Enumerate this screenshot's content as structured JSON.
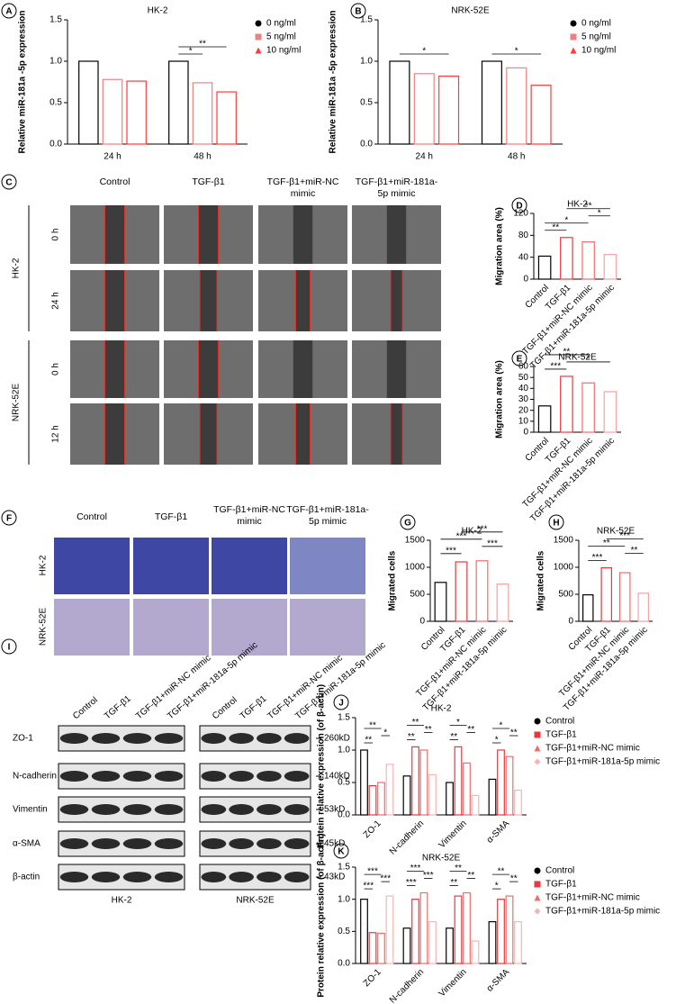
{
  "panels": [
    "A",
    "B",
    "C",
    "D",
    "E",
    "F",
    "G",
    "H",
    "I",
    "J",
    "K"
  ],
  "migration_images": {
    "columns": [
      "Control",
      "TGF-β1",
      "TGF-β1+miR-NC mimic",
      "TGF-β1+miR-181a-5p mimic"
    ],
    "rows": [
      {
        "cell_line": "HK-2",
        "times": [
          "0 h",
          "24 h"
        ]
      },
      {
        "cell_line": "NRK-52E",
        "times": [
          "0 h",
          "12 h"
        ]
      }
    ]
  },
  "transwell_images": {
    "columns": [
      "Control",
      "TGF-β1",
      "TGF-β1+miR-NC mimic",
      "TGF-β1+miR-181a-5p mimic"
    ],
    "rows": [
      "HK-2",
      "NRK-52E"
    ]
  },
  "western_blot": {
    "lanes": [
      "Control",
      "TGF-β1",
      "TGF-β1+miR-NC mimic",
      "TGF-β1+miR-181a-5p mimic"
    ],
    "proteins": [
      {
        "name": "ZO-1",
        "size": "260kD"
      },
      {
        "name": "N-cadherin",
        "size": "140kD"
      },
      {
        "name": "Vimentin",
        "size": "53kD"
      },
      {
        "name": "α-SMA",
        "size": "45kD"
      },
      {
        "name": "β-actin",
        "size": "43kD"
      }
    ],
    "cell_lines": [
      "HK-2",
      "NRK-52E"
    ]
  },
  "chart_data": [
    {
      "type": "bar",
      "title": "HK-2",
      "y_label": "Relative miR-181a -5p expression",
      "categories": [
        "24 h",
        "48 h"
      ],
      "series": [
        {
          "name": "0 ng/ml",
          "color": "#000000",
          "marker": "circle",
          "values": [
            1.0,
            1.0
          ]
        },
        {
          "name": "5 ng/ml",
          "color": "#f08080",
          "marker": "square",
          "values": [
            0.78,
            0.74
          ]
        },
        {
          "name": "10 ng/ml",
          "color": "#ff3b3b",
          "marker": "triangle",
          "values": [
            0.76,
            0.63
          ]
        }
      ],
      "ylim": [
        0,
        1.5
      ],
      "yticks": [
        {
          "value": 0,
          "label": "0.0"
        },
        {
          "value": 0.5,
          "label": "0.5"
        },
        {
          "value": 1,
          "label": "1.0"
        },
        {
          "value": 1.5,
          "label": "1.5"
        }
      ],
      "comparisons": [
        {
          "category": 1,
          "from": 0,
          "to": 1,
          "label": "*"
        },
        {
          "category": 1,
          "from": 0,
          "to": 2,
          "label": "**"
        }
      ]
    },
    {
      "type": "bar",
      "title": "NRK-52E",
      "y_label": "Relative miR-181a -5p expression",
      "categories": [
        "24 h",
        "48 h"
      ],
      "series": [
        {
          "name": "0 ng/ml",
          "color": "#000000",
          "marker": "circle",
          "values": [
            1.0,
            1.0
          ]
        },
        {
          "name": "5 ng/ml",
          "color": "#f08080",
          "marker": "square",
          "values": [
            0.85,
            0.92
          ]
        },
        {
          "name": "10 ng/ml",
          "color": "#ff3b3b",
          "marker": "triangle",
          "values": [
            0.82,
            0.71
          ]
        }
      ],
      "ylim": [
        0,
        1.5
      ],
      "yticks": [
        {
          "value": 0,
          "label": "0.0"
        },
        {
          "value": 0.5,
          "label": "0.5"
        },
        {
          "value": 1,
          "label": "1.0"
        },
        {
          "value": 1.5,
          "label": "1.5"
        }
      ],
      "comparisons": [
        {
          "category": 0,
          "from": 0,
          "to": 2,
          "label": "*"
        },
        {
          "category": 1,
          "from": 0,
          "to": 2,
          "label": "*"
        }
      ]
    },
    {
      "type": "bar",
      "title": "HK-2",
      "y_label": "Migration area (%)",
      "categories": [
        "Control",
        "TGF-β1",
        "TGF-β1+miR-NC mimic",
        "TGF-β1+miR-181a-5p mimic"
      ],
      "values": [
        42,
        76,
        68,
        45
      ],
      "colors": [
        "#000000",
        "#e8383d",
        "#f06b6b",
        "#f4a3a3"
      ],
      "ylim": [
        0,
        120
      ],
      "yticks": [
        0,
        40,
        80,
        120
      ],
      "comparisons": [
        {
          "from": 0,
          "to": 1,
          "label": "**"
        },
        {
          "from": 0,
          "to": 2,
          "label": "*"
        },
        {
          "from": 2,
          "to": 3,
          "label": "*"
        },
        {
          "from": 1,
          "to": 3,
          "label": "**"
        }
      ]
    },
    {
      "type": "bar",
      "title": "NRK-52E",
      "y_label": "Migration area (%)",
      "categories": [
        "Control",
        "TGF-β1",
        "TGF-β1+miR-NC mimic",
        "TGF-β1+miR-181a-5p mimic"
      ],
      "values": [
        24,
        51,
        45,
        37
      ],
      "colors": [
        "#000000",
        "#e8383d",
        "#f06b6b",
        "#f4a3a3"
      ],
      "ylim": [
        0,
        60
      ],
      "yticks": [
        0,
        10,
        20,
        30,
        40,
        50,
        60
      ],
      "comparisons": [
        {
          "from": 0,
          "to": 1,
          "label": "***"
        },
        {
          "from": 1,
          "to": 3,
          "label": "*"
        },
        {
          "from": 0,
          "to": 2,
          "label": "**"
        }
      ]
    },
    {
      "type": "bar",
      "title": "HK-2",
      "y_label": "Migrated cells",
      "categories": [
        "Control",
        "TGF-β1",
        "TGF-β1+miR-NC mimic",
        "TGF-β1+miR-181a-5p mimic"
      ],
      "values": [
        720,
        1100,
        1120,
        690
      ],
      "colors": [
        "#000000",
        "#e8383d",
        "#f06b6b",
        "#f4a3a3"
      ],
      "ylim": [
        0,
        1500
      ],
      "yticks": [
        0,
        500,
        1000,
        1500
      ],
      "comparisons": [
        {
          "from": 0,
          "to": 1,
          "label": "***"
        },
        {
          "from": 2,
          "to": 3,
          "label": "***"
        },
        {
          "from": 0,
          "to": 2,
          "label": "***"
        },
        {
          "from": 1,
          "to": 3,
          "label": "***"
        }
      ]
    },
    {
      "type": "bar",
      "title": "NRK-52E",
      "y_label": "Migrated cells",
      "categories": [
        "Control",
        "TGF-β1",
        "TGF-β1+miR-NC mimic",
        "TGF-β1+miR-181a-5p mimic"
      ],
      "values": [
        490,
        990,
        900,
        520
      ],
      "colors": [
        "#000000",
        "#e8383d",
        "#f06b6b",
        "#f4a3a3"
      ],
      "ylim": [
        0,
        1500
      ],
      "yticks": [
        0,
        500,
        1000,
        1500
      ],
      "comparisons": [
        {
          "from": 0,
          "to": 1,
          "label": "***"
        },
        {
          "from": 2,
          "to": 3,
          "label": "**"
        },
        {
          "from": 0,
          "to": 2,
          "label": "**"
        },
        {
          "from": 1,
          "to": 3,
          "label": "***"
        }
      ]
    },
    {
      "type": "bar",
      "title": "HK-2",
      "y_label": "Protein relative expression (of β-actin)",
      "categories": [
        "ZO-1",
        "N-cadherin",
        "Vimentin",
        "α-SMA"
      ],
      "series": [
        {
          "name": "Control",
          "color": "#000000",
          "marker": "circle",
          "values": [
            1.0,
            0.6,
            0.5,
            0.55
          ]
        },
        {
          "name": "TGF-β1",
          "color": "#e8383d",
          "marker": "square",
          "values": [
            0.45,
            1.05,
            1.05,
            1.0
          ]
        },
        {
          "name": "TGF-β1+miR-NC mimic",
          "color": "#f06b6b",
          "marker": "triangle",
          "values": [
            0.5,
            1.0,
            0.8,
            0.9
          ]
        },
        {
          "name": "TGF-β1+miR-181a-5p mimic",
          "color": "#f7b3b3",
          "marker": "diamond",
          "values": [
            0.78,
            0.62,
            0.3,
            0.38
          ]
        }
      ],
      "ylim": [
        0,
        1.5
      ],
      "yticks": [
        {
          "value": 0,
          "label": "0.0"
        },
        {
          "value": 0.5,
          "label": "0.5"
        },
        {
          "value": 1,
          "label": "1.0"
        },
        {
          "value": 1.5,
          "label": "1.5"
        }
      ],
      "comparisons": [
        {
          "category": 0,
          "from": 0,
          "to": 1,
          "label": "**"
        },
        {
          "category": 0,
          "from": 2,
          "to": 3,
          "label": "*"
        },
        {
          "category": 0,
          "from": 0,
          "to": 2,
          "label": "**"
        },
        {
          "category": 1,
          "from": 0,
          "to": 1,
          "label": "**"
        },
        {
          "category": 1,
          "from": 2,
          "to": 3,
          "label": "**"
        },
        {
          "category": 1,
          "from": 0,
          "to": 2,
          "label": "**"
        },
        {
          "category": 2,
          "from": 0,
          "to": 1,
          "label": "**"
        },
        {
          "category": 2,
          "from": 2,
          "to": 3,
          "label": "**"
        },
        {
          "category": 2,
          "from": 0,
          "to": 2,
          "label": "*"
        },
        {
          "category": 3,
          "from": 0,
          "to": 1,
          "label": "*"
        },
        {
          "category": 3,
          "from": 2,
          "to": 3,
          "label": "**"
        },
        {
          "category": 3,
          "from": 0,
          "to": 2,
          "label": "*"
        }
      ]
    },
    {
      "type": "bar",
      "title": "NRK-52E",
      "y_label": "Protein relative expression (of β-actin)",
      "categories": [
        "ZO-1",
        "N-cadherin",
        "Vimentin",
        "α-SMA"
      ],
      "series": [
        {
          "name": "Control",
          "color": "#000000",
          "marker": "circle",
          "values": [
            1.0,
            0.55,
            0.55,
            0.65
          ]
        },
        {
          "name": "TGF-β1",
          "color": "#e8383d",
          "marker": "square",
          "values": [
            0.48,
            1.0,
            1.05,
            1.0
          ]
        },
        {
          "name": "TGF-β1+miR-NC mimic",
          "color": "#f06b6b",
          "marker": "triangle",
          "values": [
            0.47,
            1.1,
            1.1,
            1.05
          ]
        },
        {
          "name": "TGF-β1+miR-181a-5p mimic",
          "color": "#f7b3b3",
          "marker": "diamond",
          "values": [
            1.05,
            0.65,
            0.35,
            0.65
          ]
        }
      ],
      "ylim": [
        0,
        1.5
      ],
      "yticks": [
        {
          "value": 0,
          "label": "0.0"
        },
        {
          "value": 0.5,
          "label": "0.5"
        },
        {
          "value": 1,
          "label": "1.0"
        },
        {
          "value": 1.5,
          "label": "1.5"
        }
      ],
      "comparisons": [
        {
          "category": 0,
          "from": 0,
          "to": 1,
          "label": "***"
        },
        {
          "category": 0,
          "from": 2,
          "to": 3,
          "label": "***"
        },
        {
          "category": 0,
          "from": 0,
          "to": 2,
          "label": "***"
        },
        {
          "category": 1,
          "from": 0,
          "to": 1,
          "label": "***"
        },
        {
          "category": 1,
          "from": 2,
          "to": 3,
          "label": "***"
        },
        {
          "category": 1,
          "from": 0,
          "to": 2,
          "label": "***"
        },
        {
          "category": 2,
          "from": 0,
          "to": 1,
          "label": "**"
        },
        {
          "category": 2,
          "from": 2,
          "to": 3,
          "label": "**"
        },
        {
          "category": 2,
          "from": 0,
          "to": 2,
          "label": "**"
        },
        {
          "category": 3,
          "from": 0,
          "to": 1,
          "label": "*"
        },
        {
          "category": 3,
          "from": 2,
          "to": 3,
          "label": "**"
        },
        {
          "category": 3,
          "from": 0,
          "to": 2,
          "label": "**"
        }
      ]
    }
  ]
}
